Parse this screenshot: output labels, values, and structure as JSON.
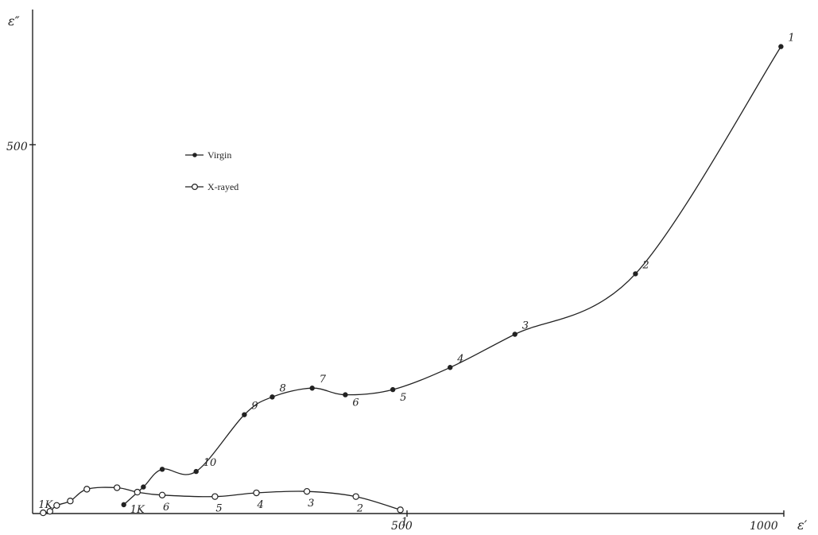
{
  "chart_data": {
    "type": "scatter",
    "title": "",
    "xlabel": "ε′",
    "ylabel": "ε″",
    "x_ticks": [
      "500",
      "1000"
    ],
    "y_ticks": [
      "500"
    ],
    "xlim": [
      0,
      1000
    ],
    "ylim": [
      0,
      650
    ],
    "grid": false,
    "legend_position": "upper-left",
    "series": [
      {
        "name": "Virgin",
        "marker": "filled-circle",
        "color": "#222222",
        "points": [
          {
            "x": 993,
            "y": 633,
            "label": "1"
          },
          {
            "x": 800,
            "y": 325,
            "label": "2"
          },
          {
            "x": 640,
            "y": 243,
            "label": "3"
          },
          {
            "x": 554,
            "y": 198,
            "label": "4"
          },
          {
            "x": 478,
            "y": 168,
            "label": "5"
          },
          {
            "x": 415,
            "y": 161,
            "label": "6"
          },
          {
            "x": 371,
            "y": 170,
            "label": "7"
          },
          {
            "x": 318,
            "y": 158,
            "label": "8"
          },
          {
            "x": 281,
            "y": 134,
            "label": "9"
          },
          {
            "x": 217,
            "y": 57,
            "label": "10"
          },
          {
            "x": 172,
            "y": 60,
            "label": ""
          },
          {
            "x": 147,
            "y": 36,
            "label": ""
          },
          {
            "x": 121,
            "y": 12,
            "label": "1K"
          }
        ]
      },
      {
        "name": "X-rayed",
        "marker": "open-circle",
        "color": "#222222",
        "points": [
          {
            "x": 488,
            "y": 5,
            "label": "1"
          },
          {
            "x": 429,
            "y": 23,
            "label": "2"
          },
          {
            "x": 364,
            "y": 30,
            "label": "3"
          },
          {
            "x": 297,
            "y": 28,
            "label": "4"
          },
          {
            "x": 242,
            "y": 23,
            "label": "5"
          },
          {
            "x": 172,
            "y": 25,
            "label": "6"
          },
          {
            "x": 139,
            "y": 29,
            "label": ""
          },
          {
            "x": 112,
            "y": 35,
            "label": ""
          },
          {
            "x": 72,
            "y": 33,
            "label": ""
          },
          {
            "x": 50,
            "y": 17,
            "label": ""
          },
          {
            "x": 32,
            "y": 11,
            "label": ""
          },
          {
            "x": 23,
            "y": 3,
            "label": ""
          },
          {
            "x": 14,
            "y": 1,
            "label": "1K"
          }
        ]
      }
    ]
  }
}
